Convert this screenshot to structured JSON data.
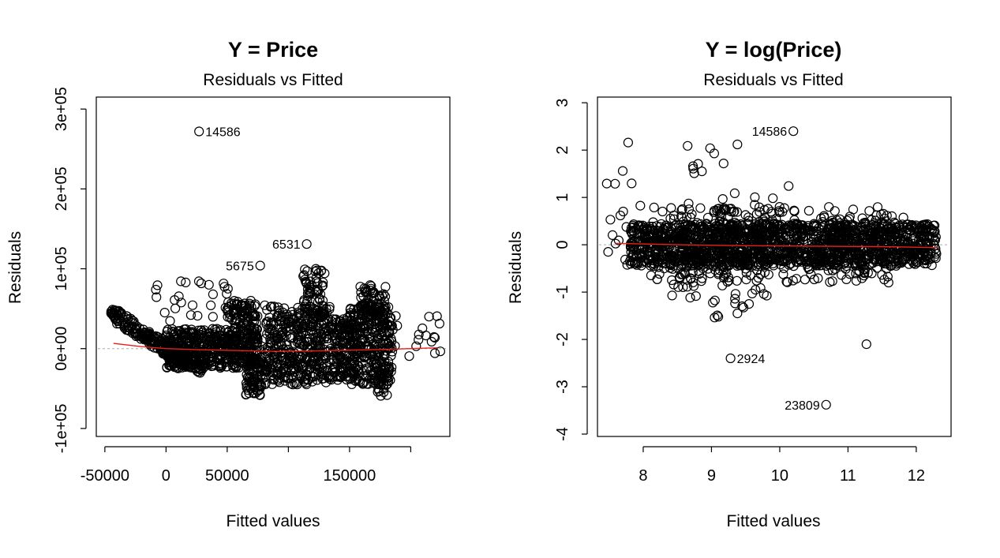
{
  "colors": {
    "smooth_line": "#e8201c",
    "points": "#000000",
    "reference_line": "#aaaaaa"
  },
  "chart_data": [
    {
      "type": "scatter",
      "title": "Y = Price",
      "subtitle": "Residuals vs Fitted",
      "xlabel": "Fitted values",
      "ylabel": "Residuals",
      "xlim": [
        -57000,
        232000
      ],
      "ylim": [
        -110000,
        315000
      ],
      "x_ticks": [
        {
          "value": -50000,
          "label": "-50000"
        },
        {
          "value": 0,
          "label": "0"
        },
        {
          "value": 50000,
          "label": "50000"
        },
        {
          "value": 100000,
          "label": ""
        },
        {
          "value": 150000,
          "label": "150000"
        },
        {
          "value": 200000,
          "label": ""
        }
      ],
      "y_ticks": [
        {
          "value": -100000,
          "label": "-1e+05"
        },
        {
          "value": 0,
          "label": "0e+00"
        },
        {
          "value": 100000,
          "label": "1e+05"
        },
        {
          "value": 200000,
          "label": "2e+05"
        },
        {
          "value": 300000,
          "label": "3e+05"
        }
      ],
      "reference_y": 0,
      "labeled_points": [
        {
          "x": 27000,
          "y": 272000,
          "label": "14586",
          "side": "right"
        },
        {
          "x": 115000,
          "y": 131000,
          "label": "6531",
          "side": "left"
        },
        {
          "x": 77000,
          "y": 104000,
          "label": "5675",
          "side": "left"
        }
      ],
      "smooth": [
        [
          -43000,
          6500
        ],
        [
          -20000,
          2500
        ],
        [
          0,
          0
        ],
        [
          30000,
          -1500
        ],
        [
          60000,
          -2500
        ],
        [
          90000,
          -3500
        ],
        [
          120000,
          -3000
        ],
        [
          150000,
          -2000
        ],
        [
          180000,
          -1000
        ],
        [
          210000,
          500
        ],
        [
          222000,
          1000
        ]
      ],
      "point_groups": [
        {
          "kind": "band",
          "x_from": -45000,
          "x_to": 0,
          "y_from": 45000,
          "y_to": 0,
          "spread": 9000,
          "n": 150
        },
        {
          "kind": "band",
          "x_from": 0,
          "x_to": 30000,
          "y_from": 0,
          "y_to": -25000,
          "spread": 9000,
          "n": 110
        },
        {
          "kind": "cloud",
          "x": [
            0,
            75000
          ],
          "y": [
            -25000,
            25000
          ],
          "n": 450
        },
        {
          "kind": "cloud",
          "x": [
            50000,
            75000
          ],
          "y": [
            5000,
            60000
          ],
          "n": 130
        },
        {
          "kind": "cloud",
          "x": [
            65000,
            80000
          ],
          "y": [
            -60000,
            -10000
          ],
          "n": 80
        },
        {
          "kind": "cloud",
          "x": [
            80000,
            135000
          ],
          "y": [
            -45000,
            55000
          ],
          "n": 420
        },
        {
          "kind": "cloud",
          "x": [
            110000,
            130000
          ],
          "y": [
            40000,
            100000
          ],
          "n": 60
        },
        {
          "kind": "cloud",
          "x": [
            135000,
            155000
          ],
          "y": [
            -40000,
            40000
          ],
          "n": 150
        },
        {
          "kind": "cloud",
          "x": [
            150000,
            185000
          ],
          "y": [
            -45000,
            55000
          ],
          "n": 320
        },
        {
          "kind": "cloud",
          "x": [
            158000,
            180000
          ],
          "y": [
            40000,
            80000
          ],
          "n": 60
        },
        {
          "kind": "cloud",
          "x": [
            170000,
            185000
          ],
          "y": [
            -60000,
            -30000
          ],
          "n": 20
        },
        {
          "kind": "cloud",
          "x": [
            185000,
            225000
          ],
          "y": [
            -10000,
            45000
          ],
          "n": 18
        },
        {
          "kind": "cloud",
          "x": [
            -10000,
            60000
          ],
          "y": [
            30000,
            85000
          ],
          "n": 25
        }
      ]
    },
    {
      "type": "scatter",
      "title": "Y = log(Price)",
      "subtitle": "Residuals vs Fitted",
      "xlabel": "Fitted values",
      "ylabel": "Residuals",
      "xlim": [
        7.33,
        12.51
      ],
      "ylim": [
        -4.05,
        3.12
      ],
      "x_ticks": [
        {
          "value": 8,
          "label": "8"
        },
        {
          "value": 9,
          "label": "9"
        },
        {
          "value": 10,
          "label": "10"
        },
        {
          "value": 11,
          "label": "11"
        },
        {
          "value": 12,
          "label": "12"
        }
      ],
      "y_ticks": [
        {
          "value": -4,
          "label": "-4"
        },
        {
          "value": -3,
          "label": "-3"
        },
        {
          "value": -2,
          "label": "-2"
        },
        {
          "value": -1,
          "label": "-1"
        },
        {
          "value": 0,
          "label": "0"
        },
        {
          "value": 1,
          "label": "1"
        },
        {
          "value": 2,
          "label": "2"
        },
        {
          "value": 3,
          "label": "3"
        }
      ],
      "reference_y": 0,
      "labeled_points": [
        {
          "x": 10.2,
          "y": 2.4,
          "label": "14586",
          "side": "left"
        },
        {
          "x": 9.28,
          "y": -2.4,
          "label": "2924",
          "side": "right"
        },
        {
          "x": 10.68,
          "y": -3.38,
          "label": "23809",
          "side": "left"
        }
      ],
      "smooth": [
        [
          7.6,
          0.03
        ],
        [
          8.5,
          0.0
        ],
        [
          9.5,
          -0.02
        ],
        [
          10.5,
          -0.03
        ],
        [
          11.5,
          -0.04
        ],
        [
          12.3,
          -0.06
        ]
      ],
      "point_groups": [
        {
          "kind": "cloud",
          "x": [
            7.8,
            12.3
          ],
          "y": [
            -0.45,
            0.45
          ],
          "n": 1500
        },
        {
          "kind": "cloud",
          "x": [
            8.1,
            11.6
          ],
          "y": [
            -0.8,
            0.8
          ],
          "n": 350
        },
        {
          "kind": "cloud",
          "x": [
            8.4,
            9.9
          ],
          "y": [
            -1.2,
            1.1
          ],
          "n": 90
        },
        {
          "kind": "cloud",
          "x": [
            7.45,
            8.0
          ],
          "y": [
            -0.6,
            1.6
          ],
          "n": 14
        },
        {
          "kind": "cloud",
          "x": [
            8.6,
            9.5
          ],
          "y": [
            1.4,
            2.15
          ],
          "n": 6
        },
        {
          "kind": "cloud",
          "x": [
            9.0,
            9.5
          ],
          "y": [
            -1.55,
            -1.2
          ],
          "n": 6
        },
        {
          "kind": "cloud",
          "x": [
            11.0,
            12.0
          ],
          "y": [
            -0.8,
            0.7
          ],
          "n": 30
        }
      ],
      "extra_points": [
        {
          "x": 7.52,
          "y": 0.53
        },
        {
          "x": 7.78,
          "y": 2.16
        },
        {
          "x": 7.7,
          "y": 1.56
        },
        {
          "x": 8.65,
          "y": 2.09
        },
        {
          "x": 8.98,
          "y": 2.04
        },
        {
          "x": 9.38,
          "y": 2.12
        },
        {
          "x": 9.04,
          "y": 1.93
        },
        {
          "x": 10.13,
          "y": 1.24
        },
        {
          "x": 11.27,
          "y": -2.1
        },
        {
          "x": 9.1,
          "y": -1.52
        },
        {
          "x": 9.38,
          "y": -1.45
        },
        {
          "x": 9.55,
          "y": -1.25
        }
      ]
    }
  ]
}
